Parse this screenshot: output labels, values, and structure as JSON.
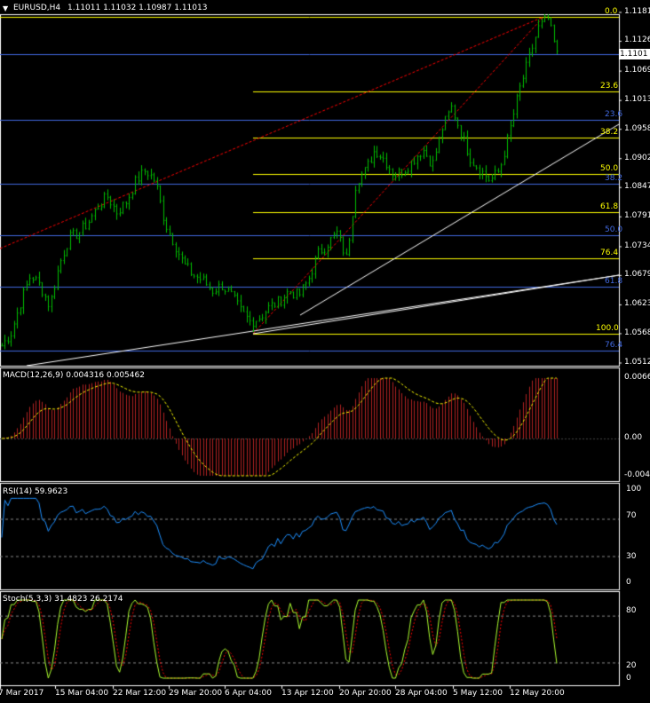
{
  "header": {
    "symbol_tf": "EURUSD,H4",
    "quote": "1.11011 1.11032 1.10987 1.11013",
    "menu_arrow": "▼"
  },
  "price_axis": {
    "ticks": [
      "1.1181",
      "1.1126",
      "1.1069",
      "1.1013",
      "1.0958",
      "1.0902",
      "1.0847",
      "1.0791",
      "1.0734",
      "1.0679",
      "1.0623",
      "1.0568",
      "1.0512"
    ],
    "current": "1.1101"
  },
  "fib_yellow": [
    "0.0",
    "23.6",
    "38.2",
    "50.0",
    "61.8",
    "76.4",
    "100.0"
  ],
  "fib_blue": [
    "23.6",
    "38.2",
    "50.0",
    "61.8",
    "76.4"
  ],
  "macd": {
    "title": "MACD(12,26,9) 0.004316 0.005462",
    "ticks": [
      "0.0066",
      "0.00",
      "-0.0040"
    ]
  },
  "rsi": {
    "title": "RSI(14) 59.9623",
    "ticks": [
      "100",
      "70",
      "30",
      "0"
    ]
  },
  "stoch": {
    "title": "Stoch(5,3,3) 31.4823 26.2174",
    "ticks": [
      "80",
      "20",
      "0"
    ]
  },
  "time_axis": [
    "7 Mar 2017",
    "15 Mar 04:00",
    "22 Mar 12:00",
    "29 Mar 20:00",
    "6 Apr 04:00",
    "13 Apr 12:00",
    "20 Apr 20:00",
    "28 Apr 04:00",
    "5 May 12:00",
    "12 May 20:00"
  ],
  "colors": {
    "bg": "#000000",
    "grid": "#ffffff",
    "candle": "#00c000",
    "fib_yellow": "#ffff00",
    "fib_blue": "#4169e1",
    "trend_red": "#ff0000",
    "trend_white": "#ffffff",
    "macd_hist": "#b22222",
    "macd_signal": "#ffff00",
    "rsi": "#1e90ff",
    "stoch_main": "#adff2f",
    "stoch_signal": "#ff0000"
  },
  "chart_data": {
    "type": "line",
    "series": [
      {
        "values": [
          1.0545,
          1.057,
          1.063,
          1.068,
          1.066,
          1.062,
          1.07,
          1.075,
          1.076,
          1.078,
          1.081,
          1.083,
          1.08,
          1.082,
          1.086,
          1.088,
          1.086,
          1.078,
          1.074,
          1.07,
          1.068,
          1.067,
          1.065,
          1.066,
          1.064,
          1.061,
          1.059,
          1.06,
          1.062,
          1.063,
          1.065,
          1.064,
          1.067,
          1.072,
          1.074,
          1.076,
          1.071,
          1.086,
          1.088,
          1.092,
          1.09,
          1.087,
          1.088,
          1.09,
          1.092,
          1.089,
          1.096,
          1.1,
          1.095,
          1.09,
          1.088,
          1.086,
          1.088,
          1.095,
          1.103,
          1.109,
          1.115,
          1.117,
          1.11
        ]
      }
    ]
  }
}
